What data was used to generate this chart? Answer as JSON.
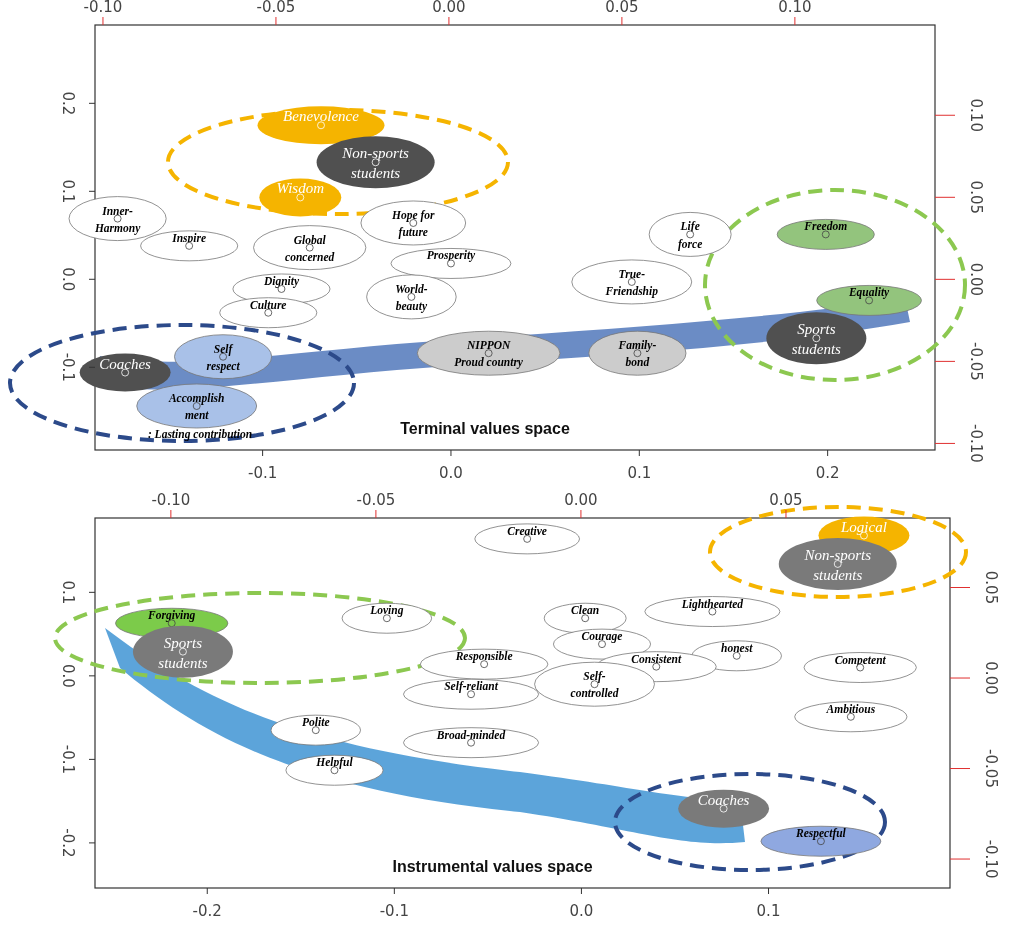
{
  "chart_data": [
    {
      "type": "scatter",
      "title": "Terminal values space",
      "xlim": [
        -0.189,
        0.257
      ],
      "ylim": [
        -0.194,
        0.289
      ],
      "xticks": [
        {
          "value": -0.1,
          "label": "-0.1"
        },
        {
          "value": 0,
          "label": "0.0"
        },
        {
          "value": 0.1,
          "label": "0.1"
        },
        {
          "value": 0.2,
          "label": "0.2"
        }
      ],
      "yticks": [
        {
          "value": -0.1,
          "label": "-0.1"
        },
        {
          "value": 0,
          "label": "0.0"
        },
        {
          "value": 0.1,
          "label": "0.1"
        },
        {
          "value": 0.2,
          "label": "0.2"
        }
      ],
      "x2lim": [
        -0.1023,
        0.1405
      ],
      "x2ticks": [
        {
          "value": -0.1,
          "label": "-0.10"
        },
        {
          "value": -0.05,
          "label": "-0.05"
        },
        {
          "value": 0,
          "label": "0.00"
        },
        {
          "value": 0.05,
          "label": "0.05"
        },
        {
          "value": 0.1,
          "label": "0.10"
        }
      ],
      "y2lim": [
        -0.104,
        0.155
      ],
      "y2ticks": [
        {
          "value": -0.1,
          "label": "-0.10"
        },
        {
          "value": -0.05,
          "label": "-0.05"
        },
        {
          "value": 0,
          "label": "0.00"
        },
        {
          "value": 0.05,
          "label": "0.05"
        },
        {
          "value": 0.1,
          "label": "0.10"
        }
      ],
      "annotations": [
        ": Lasting contribution"
      ],
      "series": [
        {
          "name": "Benevolence",
          "color": "#f5b400",
          "x": [
            -0.069
          ],
          "values": [
            0.175
          ]
        },
        {
          "name": "Non-sports\nstudents",
          "color": "#505050",
          "x": [
            -0.04
          ],
          "values": [
            0.133
          ]
        },
        {
          "name": "Wisdom",
          "color": "#f5b400",
          "x": [
            -0.08
          ],
          "values": [
            0.093
          ]
        },
        {
          "name": "Inner-\nHarmony",
          "color": "#ffffff",
          "x": [
            -0.177
          ],
          "values": [
            0.069
          ]
        },
        {
          "name": "Inspire",
          "color": "#ffffff",
          "x": [
            -0.139
          ],
          "values": [
            0.038
          ]
        },
        {
          "name": "Global\nconcerned",
          "color": "#ffffff",
          "x": [
            -0.075
          ],
          "values": [
            0.036
          ]
        },
        {
          "name": "Hope for\nfuture",
          "color": "#ffffff",
          "x": [
            -0.02
          ],
          "values": [
            0.064
          ]
        },
        {
          "name": "Prosperity",
          "color": "#ffffff",
          "x": [
            0.0
          ],
          "values": [
            0.018
          ]
        },
        {
          "name": "Dignity",
          "color": "#ffffff",
          "x": [
            -0.09
          ],
          "values": [
            -0.011
          ]
        },
        {
          "name": "World-\nbeauty",
          "color": "#ffffff",
          "x": [
            -0.021
          ],
          "values": [
            -0.02
          ]
        },
        {
          "name": "Culture",
          "color": "#ffffff",
          "x": [
            -0.097
          ],
          "values": [
            -0.038
          ]
        },
        {
          "name": "Life\nforce",
          "color": "#ffffff",
          "x": [
            0.127
          ],
          "values": [
            0.051
          ]
        },
        {
          "name": "True-\nFriendship",
          "color": "#ffffff",
          "x": [
            0.096
          ],
          "values": [
            -0.003
          ]
        },
        {
          "name": "Freedom",
          "color": "#93c47d",
          "x": [
            0.199
          ],
          "values": [
            0.051
          ]
        },
        {
          "name": "Equality",
          "color": "#93c47d",
          "x": [
            0.222
          ],
          "values": [
            -0.024
          ]
        },
        {
          "name": "Sports\nstudents",
          "color": "#505050",
          "x": [
            0.194
          ],
          "values": [
            -0.067
          ]
        },
        {
          "name": "NIPPON\nProud country",
          "color": "#cccccc",
          "x": [
            0.02
          ],
          "values": [
            -0.084
          ]
        },
        {
          "name": "Family-\nbond",
          "color": "#cccccc",
          "x": [
            0.099
          ],
          "values": [
            -0.084
          ]
        },
        {
          "name": "Self\nrespect",
          "color": "#a9c1e8",
          "x": [
            -0.121
          ],
          "values": [
            -0.088
          ]
        },
        {
          "name": "Coaches",
          "color": "#505050",
          "x": [
            -0.173
          ],
          "values": [
            -0.106
          ]
        },
        {
          "name": "Accomplish\nment",
          "color": "#a9c1e8",
          "x": [
            -0.135
          ],
          "values": [
            -0.144
          ]
        }
      ]
    },
    {
      "type": "scatter",
      "title": "Instrumental values space",
      "xlim": [
        -0.26,
        0.197
      ],
      "ylim": [
        -0.254,
        0.189
      ],
      "xticks": [
        {
          "value": -0.2,
          "label": "-0.2"
        },
        {
          "value": -0.1,
          "label": "-0.1"
        },
        {
          "value": 0,
          "label": "0.0"
        },
        {
          "value": 0.1,
          "label": "0.1"
        }
      ],
      "yticks": [
        {
          "value": -0.2,
          "label": "-0.2"
        },
        {
          "value": -0.1,
          "label": "-0.1"
        },
        {
          "value": 0,
          "label": "0.0"
        },
        {
          "value": 0.1,
          "label": "0.1"
        }
      ],
      "x2lim": [
        -0.1185,
        0.09
      ],
      "x2ticks": [
        {
          "value": -0.1,
          "label": "-0.10"
        },
        {
          "value": -0.05,
          "label": "-0.05"
        },
        {
          "value": 0,
          "label": "0.00"
        },
        {
          "value": 0.05,
          "label": "0.05"
        }
      ],
      "y2lim": [
        -0.116,
        0.0884
      ],
      "y2ticks": [
        {
          "value": -0.1,
          "label": "-0.10"
        },
        {
          "value": -0.05,
          "label": "-0.05"
        },
        {
          "value": 0,
          "label": "0.00"
        },
        {
          "value": 0.05,
          "label": "0.05"
        }
      ],
      "series": [
        {
          "name": "Creative",
          "color": "#ffffff",
          "x": [
            -0.029
          ],
          "values": [
            0.164
          ]
        },
        {
          "name": "Logical",
          "color": "#f5b400",
          "x": [
            0.151
          ],
          "values": [
            0.168
          ]
        },
        {
          "name": "Non-sports\nstudents",
          "color": "#7a7a7a",
          "x": [
            0.137
          ],
          "values": [
            0.134
          ]
        },
        {
          "name": "Forgiving",
          "color": "#7ccb4a",
          "x": [
            -0.219
          ],
          "values": [
            0.063
          ]
        },
        {
          "name": "Loving",
          "color": "#ffffff",
          "x": [
            -0.104
          ],
          "values": [
            0.069
          ]
        },
        {
          "name": "Sports\nstudents",
          "color": "#7a7a7a",
          "x": [
            -0.213
          ],
          "values": [
            0.029
          ]
        },
        {
          "name": "Clean",
          "color": "#ffffff",
          "x": [
            0.002
          ],
          "values": [
            0.069
          ]
        },
        {
          "name": "Lighthearted",
          "color": "#ffffff",
          "x": [
            0.07
          ],
          "values": [
            0.077
          ]
        },
        {
          "name": "Courage",
          "color": "#ffffff",
          "x": [
            0.011
          ],
          "values": [
            0.038
          ]
        },
        {
          "name": "honest",
          "color": "#ffffff",
          "x": [
            0.083
          ],
          "values": [
            0.024
          ]
        },
        {
          "name": "Responsible",
          "color": "#ffffff",
          "x": [
            -0.052
          ],
          "values": [
            0.014
          ]
        },
        {
          "name": "Consistent",
          "color": "#ffffff",
          "x": [
            0.04
          ],
          "values": [
            0.011
          ]
        },
        {
          "name": "Competent",
          "color": "#ffffff",
          "x": [
            0.149
          ],
          "values": [
            0.01
          ]
        },
        {
          "name": "Self-\ncontrolled",
          "color": "#ffffff",
          "x": [
            0.007
          ],
          "values": [
            -0.01
          ]
        },
        {
          "name": "Self-reliant",
          "color": "#ffffff",
          "x": [
            -0.059
          ],
          "values": [
            -0.022
          ]
        },
        {
          "name": "Ambitious",
          "color": "#ffffff",
          "x": [
            0.144
          ],
          "values": [
            -0.049
          ]
        },
        {
          "name": "Polite",
          "color": "#ffffff",
          "x": [
            -0.142
          ],
          "values": [
            -0.065
          ]
        },
        {
          "name": "Broad-minded",
          "color": "#ffffff",
          "x": [
            -0.059
          ],
          "values": [
            -0.08
          ]
        },
        {
          "name": "Helpful",
          "color": "#ffffff",
          "x": [
            -0.132
          ],
          "values": [
            -0.113
          ]
        },
        {
          "name": "Coaches",
          "color": "#7a7a7a",
          "x": [
            0.076
          ],
          "values": [
            -0.159
          ]
        },
        {
          "name": "Respectful",
          "color": "#8fa8e0",
          "x": [
            0.128
          ],
          "values": [
            -0.198
          ]
        }
      ]
    }
  ]
}
